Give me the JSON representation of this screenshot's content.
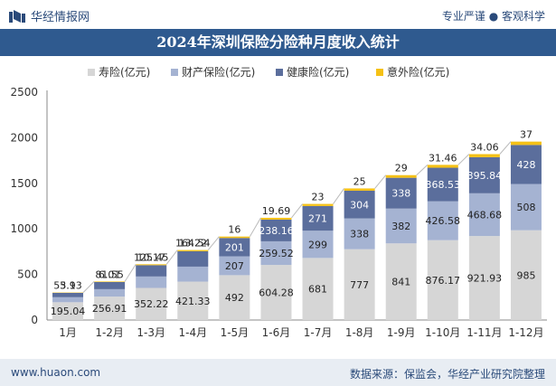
{
  "header": {
    "brand": "华经情报网",
    "tagline": "专业严谨 ● 客观科学"
  },
  "footer": {
    "website": "www.huaon.com",
    "source": "数据来源：保监会，华经产业研究院整理"
  },
  "chart_data": {
    "type": "bar",
    "stacked": true,
    "title": "2024年深圳保险分险种月度收入统计",
    "xlabel": "",
    "ylabel": "",
    "ylim": [
      0,
      2500
    ],
    "yticks": [
      0,
      500,
      1000,
      1500,
      2000,
      2500
    ],
    "grid": false,
    "legend_position": "top",
    "categories": [
      "1月",
      "1-2月",
      "1-3月",
      "1-4月",
      "1-5月",
      "1-6月",
      "1-7月",
      "1-8月",
      "1-9月",
      "1-10月",
      "1-11月",
      "1-12月"
    ],
    "series": [
      {
        "name": "寿险(亿元)",
        "color": "#d6d6d6",
        "values": [
          195.04,
          256.91,
          352.22,
          421.33,
          492,
          604.28,
          681,
          777,
          841,
          876.17,
          921.93,
          985
        ]
      },
      {
        "name": "财产保险(亿元)",
        "color": "#a5b3d2",
        "values": [
          55.13,
          81.55,
          125.45,
          164.54,
          207,
          259.52,
          299,
          338,
          382,
          426.58,
          468.68,
          508
        ]
      },
      {
        "name": "健康险(亿元)",
        "color": "#5b6e9c",
        "values": [
          47.64,
          78.15,
          123.95,
          168.77,
          201,
          238.16,
          271,
          304,
          338,
          368.53,
          395.84,
          428
        ]
      },
      {
        "name": "意外险(亿元)",
        "color": "#f5c116",
        "values": [
          3.9,
          6.01,
          10.17,
          13.22,
          16,
          19.69,
          23,
          25,
          29,
          31.46,
          34.06,
          37
        ]
      }
    ]
  }
}
